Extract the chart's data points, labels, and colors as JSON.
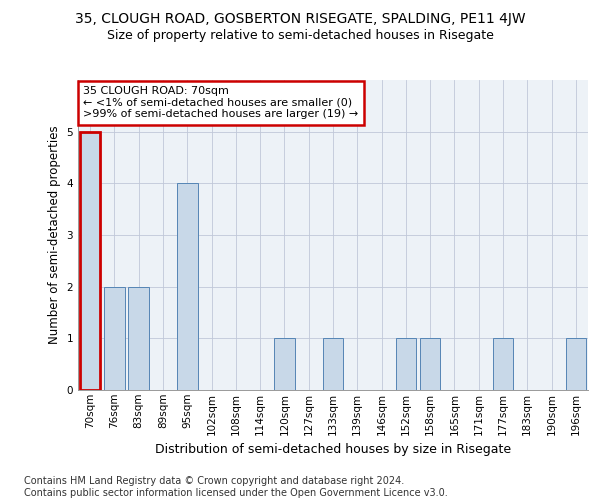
{
  "title1": "35, CLOUGH ROAD, GOSBERTON RISEGATE, SPALDING, PE11 4JW",
  "title2": "Size of property relative to semi-detached houses in Risegate",
  "xlabel": "Distribution of semi-detached houses by size in Risegate",
  "ylabel": "Number of semi-detached properties",
  "categories": [
    "70sqm",
    "76sqm",
    "83sqm",
    "89sqm",
    "95sqm",
    "102sqm",
    "108sqm",
    "114sqm",
    "120sqm",
    "127sqm",
    "133sqm",
    "139sqm",
    "146sqm",
    "152sqm",
    "158sqm",
    "165sqm",
    "171sqm",
    "177sqm",
    "183sqm",
    "190sqm",
    "196sqm"
  ],
  "values": [
    5,
    2,
    2,
    0,
    4,
    0,
    0,
    0,
    1,
    0,
    1,
    0,
    0,
    1,
    1,
    0,
    0,
    1,
    0,
    0,
    1
  ],
  "bar_color": "#c8d8e8",
  "bar_edge_color": "#5585b5",
  "highlight_bar_index": 0,
  "highlight_bar_edge_color": "#cc0000",
  "annotation_text": "35 CLOUGH ROAD: 70sqm\n← <1% of semi-detached houses are smaller (0)\n>99% of semi-detached houses are larger (19) →",
  "annotation_box_color": "#ffffff",
  "annotation_box_edge_color": "#cc0000",
  "footer": "Contains HM Land Registry data © Crown copyright and database right 2024.\nContains public sector information licensed under the Open Government Licence v3.0.",
  "ylim": [
    0,
    6
  ],
  "yticks": [
    0,
    1,
    2,
    3,
    4,
    5
  ],
  "bg_color": "#edf2f7",
  "grid_color": "#c0c8d8",
  "title1_fontsize": 10,
  "title2_fontsize": 9,
  "xlabel_fontsize": 9,
  "ylabel_fontsize": 8.5,
  "tick_fontsize": 7.5,
  "footer_fontsize": 7,
  "ann_fontsize": 8
}
